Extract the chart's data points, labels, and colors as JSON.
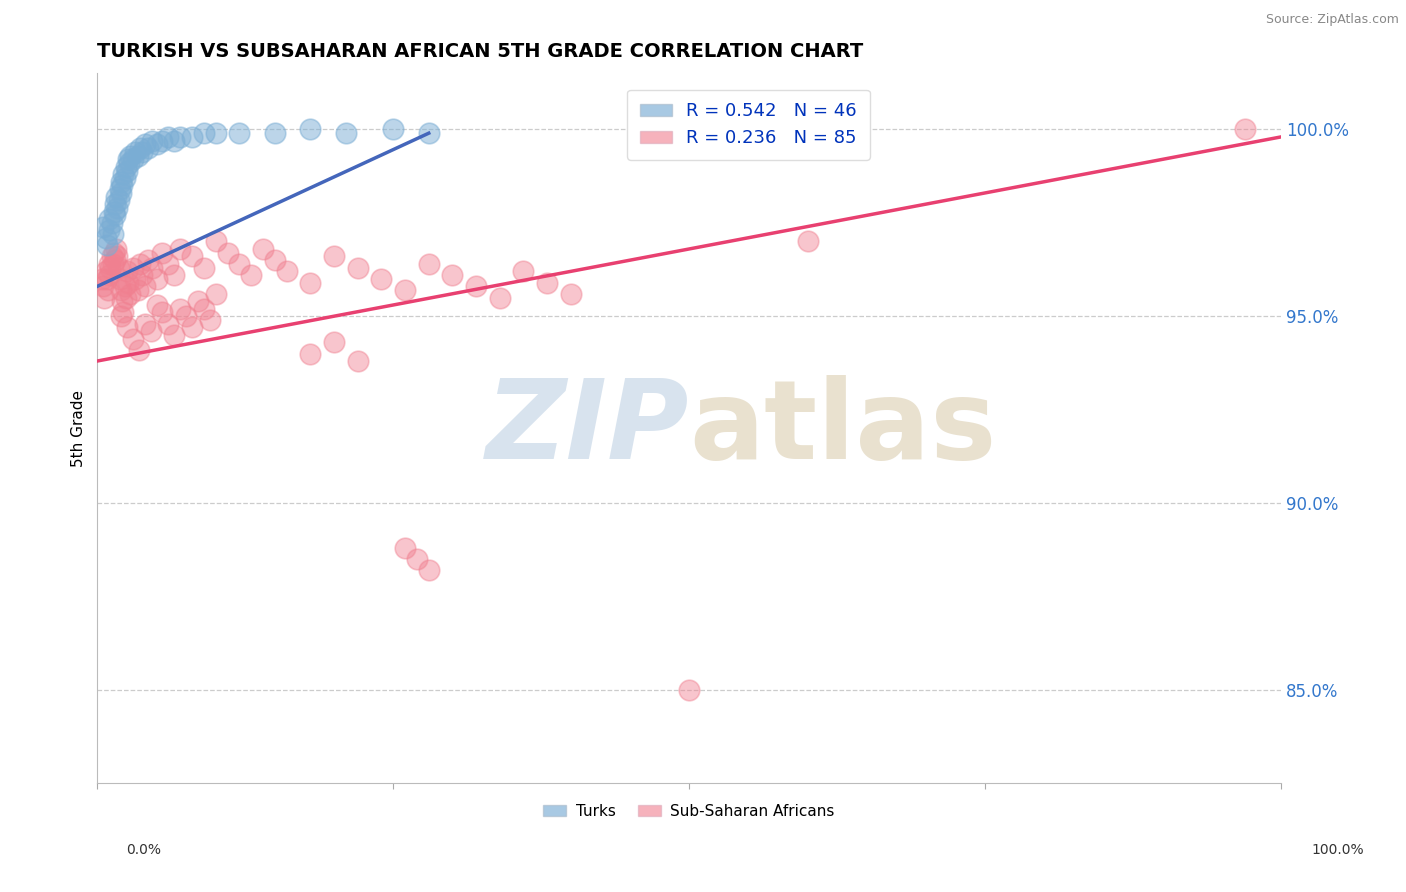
{
  "title": "TURKISH VS SUBSAHARAN AFRICAN 5TH GRADE CORRELATION CHART",
  "source": "Source: ZipAtlas.com",
  "ylabel": "5th Grade",
  "ytick_labels": [
    "85.0%",
    "90.0%",
    "95.0%",
    "100.0%"
  ],
  "ytick_values": [
    0.85,
    0.9,
    0.95,
    1.0
  ],
  "xrange": [
    0.0,
    1.0
  ],
  "yrange": [
    0.825,
    1.015
  ],
  "legend_blue_r": "R = 0.542",
  "legend_blue_n": "N = 46",
  "legend_pink_r": "R = 0.236",
  "legend_pink_n": "N = 85",
  "legend_blue_label": "Turks",
  "legend_pink_label": "Sub-Saharan Africans",
  "blue_color": "#7AADD4",
  "pink_color": "#F08090",
  "trend_blue_color": "#4466BB",
  "trend_pink_color": "#E84070",
  "watermark_color": "#C8D8E8",
  "blue_trend_x": [
    0.0,
    0.28
  ],
  "blue_trend_y": [
    0.958,
    0.999
  ],
  "pink_trend_x": [
    0.0,
    1.0
  ],
  "pink_trend_y": [
    0.938,
    0.998
  ],
  "blue_points_x": [
    0.005,
    0.007,
    0.008,
    0.01,
    0.01,
    0.012,
    0.013,
    0.014,
    0.015,
    0.015,
    0.016,
    0.017,
    0.018,
    0.019,
    0.02,
    0.02,
    0.021,
    0.022,
    0.023,
    0.024,
    0.025,
    0.026,
    0.027,
    0.028,
    0.03,
    0.032,
    0.034,
    0.036,
    0.038,
    0.04,
    0.043,
    0.046,
    0.05,
    0.055,
    0.06,
    0.065,
    0.07,
    0.08,
    0.09,
    0.1,
    0.12,
    0.15,
    0.18,
    0.21,
    0.25,
    0.28
  ],
  "blue_points_y": [
    0.974,
    0.971,
    0.969,
    0.973,
    0.976,
    0.975,
    0.972,
    0.978,
    0.977,
    0.98,
    0.982,
    0.979,
    0.981,
    0.984,
    0.983,
    0.986,
    0.985,
    0.988,
    0.987,
    0.99,
    0.989,
    0.992,
    0.991,
    0.993,
    0.992,
    0.994,
    0.993,
    0.995,
    0.994,
    0.996,
    0.995,
    0.997,
    0.996,
    0.997,
    0.998,
    0.997,
    0.998,
    0.998,
    0.999,
    0.999,
    0.999,
    0.999,
    1.0,
    0.999,
    1.0,
    0.999
  ],
  "pink_points_x": [
    0.004,
    0.005,
    0.006,
    0.007,
    0.008,
    0.009,
    0.01,
    0.01,
    0.011,
    0.012,
    0.013,
    0.014,
    0.015,
    0.016,
    0.017,
    0.018,
    0.019,
    0.02,
    0.021,
    0.022,
    0.023,
    0.024,
    0.025,
    0.026,
    0.028,
    0.03,
    0.032,
    0.034,
    0.036,
    0.038,
    0.04,
    0.043,
    0.046,
    0.05,
    0.055,
    0.06,
    0.065,
    0.07,
    0.08,
    0.09,
    0.1,
    0.11,
    0.12,
    0.13,
    0.14,
    0.15,
    0.16,
    0.18,
    0.2,
    0.22,
    0.24,
    0.26,
    0.28,
    0.3,
    0.32,
    0.34,
    0.36,
    0.38,
    0.4,
    0.18,
    0.2,
    0.22,
    0.6,
    0.02,
    0.025,
    0.03,
    0.035,
    0.04,
    0.045,
    0.05,
    0.055,
    0.06,
    0.065,
    0.07,
    0.075,
    0.08,
    0.085,
    0.09,
    0.095,
    0.1,
    0.5,
    0.26,
    0.27,
    0.28,
    0.97
  ],
  "pink_points_y": [
    0.96,
    0.958,
    0.955,
    0.962,
    0.96,
    0.957,
    0.964,
    0.961,
    0.963,
    0.966,
    0.964,
    0.967,
    0.965,
    0.968,
    0.966,
    0.963,
    0.96,
    0.957,
    0.954,
    0.951,
    0.958,
    0.955,
    0.962,
    0.959,
    0.956,
    0.963,
    0.96,
    0.957,
    0.964,
    0.961,
    0.958,
    0.965,
    0.963,
    0.96,
    0.967,
    0.964,
    0.961,
    0.968,
    0.966,
    0.963,
    0.97,
    0.967,
    0.964,
    0.961,
    0.968,
    0.965,
    0.962,
    0.959,
    0.966,
    0.963,
    0.96,
    0.957,
    0.964,
    0.961,
    0.958,
    0.955,
    0.962,
    0.959,
    0.956,
    0.94,
    0.943,
    0.938,
    0.97,
    0.95,
    0.947,
    0.944,
    0.941,
    0.948,
    0.946,
    0.953,
    0.951,
    0.948,
    0.945,
    0.952,
    0.95,
    0.947,
    0.954,
    0.952,
    0.949,
    0.956,
    0.85,
    0.888,
    0.885,
    0.882,
    1.0
  ]
}
